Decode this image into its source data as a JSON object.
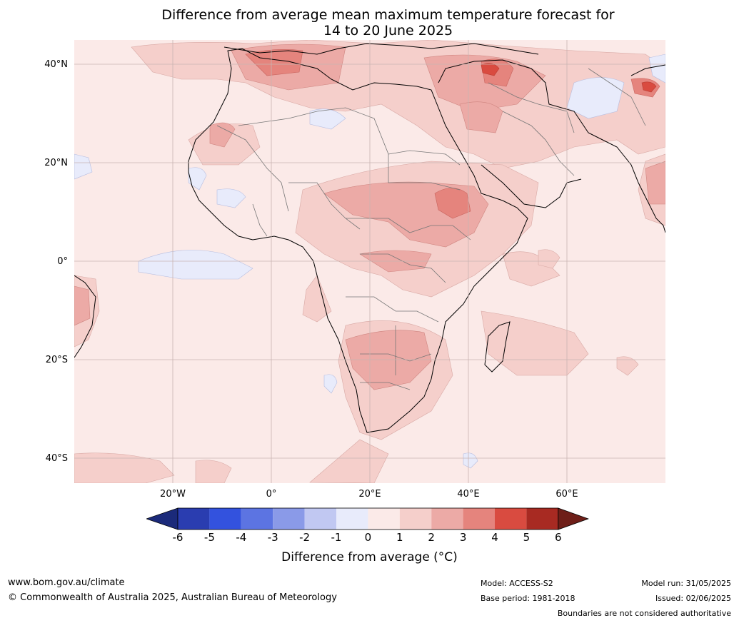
{
  "title": {
    "line1": "Difference from average mean maximum temperature forecast for",
    "line2": "14 to 20 June 2025"
  },
  "map": {
    "lat_labels": [
      "40°N",
      "20°N",
      "0°",
      "20°S",
      "40°S"
    ],
    "lon_labels": [
      "20°W",
      "0°",
      "20°E",
      "40°E",
      "60°E"
    ],
    "lon_range": [
      -40,
      80
    ],
    "lat_range": [
      -45,
      45
    ]
  },
  "colorbar": {
    "label": "Difference from average (°C)",
    "ticks": [
      "-6",
      "-5",
      "-4",
      "-3",
      "-2",
      "-1",
      "0",
      "1",
      "2",
      "3",
      "4",
      "5",
      "6"
    ],
    "colors": [
      "#1b2a7a",
      "#2a3db0",
      "#3352de",
      "#5c74e2",
      "#8a9ae8",
      "#c1c8f2",
      "#e8ebfb",
      "#fbeae8",
      "#f5cfcb",
      "#ecaaa6",
      "#e5847d",
      "#d94b40",
      "#a82a22",
      "#6e1e18"
    ]
  },
  "footer": {
    "website": "www.bom.gov.au/climate",
    "copyright": "© Commonwealth of Australia 2025, Australian Bureau of Meteorology",
    "model": "Model: ACCESS-S2",
    "base_period": "Base period: 1981-2018",
    "model_run": "Model run: 31/05/2025",
    "issued": "Issued: 02/06/2025",
    "disclaimer": "Boundaries are not considered authoritative"
  }
}
